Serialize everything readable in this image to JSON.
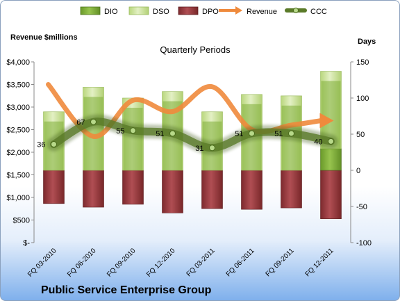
{
  "footer_title": "Public Service Enterprise Group",
  "colors": {
    "dio": "#7fae38",
    "dso": "#cde39a",
    "dpo": "#9c3a3f",
    "revenue": "#ef8a3c",
    "ccc": "#5a7a28"
  },
  "chart_data": {
    "type": "bar",
    "title": "Quarterly Periods",
    "ylabel_left": "Revenue $millions",
    "ylabel_right": "Days",
    "left_ticks": [
      "$4,000",
      "$3,500",
      "$3,000",
      "$2,500",
      "$2,000",
      "$1,500",
      "$1,000",
      "$500",
      "$-"
    ],
    "right_ticks": [
      "150",
      "100",
      "50",
      "0",
      "-50",
      "-100"
    ],
    "ylim_left": [
      0,
      4000
    ],
    "ylim_right": [
      -100,
      150
    ],
    "legend": [
      "DIO",
      "DSO",
      "DPO",
      "Revenue",
      "CCC"
    ],
    "legend_position": "top",
    "categories": [
      "FQ 03-2010",
      "FQ 06-2010",
      "FQ 09-2010",
      "FQ 12-2010",
      "FQ 03-2011",
      "FQ 06-2011",
      "FQ 09-2011",
      "FQ 12-2011"
    ],
    "series": [
      {
        "name": "DIO",
        "axis": "right",
        "values": [
          0,
          0,
          0,
          0,
          0,
          0,
          0,
          30
        ]
      },
      {
        "name": "DSO",
        "axis": "right",
        "values": [
          81,
          115,
          100,
          109,
          81,
          105,
          103,
          107
        ]
      },
      {
        "name": "DPO",
        "axis": "right",
        "values": [
          -46,
          -51,
          -47,
          -59,
          -53,
          -54,
          -52,
          -67
        ]
      },
      {
        "name": "Revenue",
        "axis": "left",
        "values": [
          3500,
          2350,
          3150,
          2900,
          3450,
          2500,
          2600,
          2700
        ]
      },
      {
        "name": "CCC",
        "axis": "right",
        "values": [
          36,
          67,
          55,
          51,
          31,
          51,
          51,
          40
        ]
      }
    ],
    "ccc_labels": [
      "36",
      "67",
      "55",
      "51",
      "31",
      "51",
      "51",
      "40"
    ]
  }
}
